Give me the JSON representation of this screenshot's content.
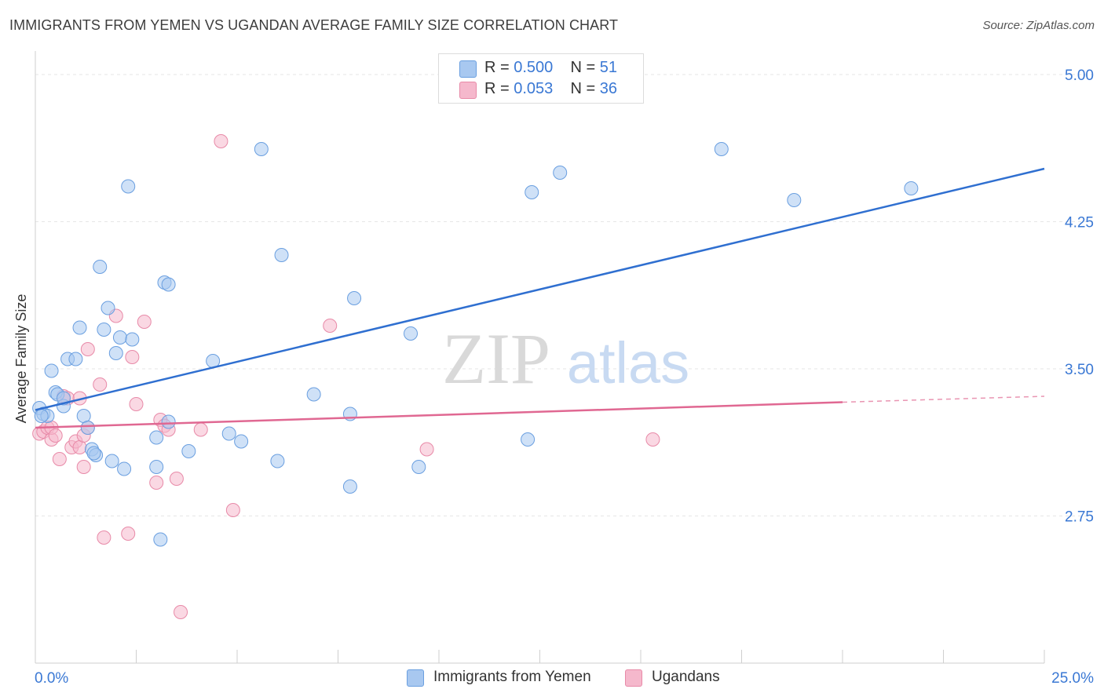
{
  "title": "IMMIGRANTS FROM YEMEN VS UGANDAN AVERAGE FAMILY SIZE CORRELATION CHART",
  "source": "Source: ZipAtlas.com",
  "watermark": {
    "zip": "ZIP",
    "atlas": "atlas"
  },
  "legend": {
    "rows": [
      {
        "r_label": "R = ",
        "r_value": "0.500",
        "n_label": "N = ",
        "n_value": "51"
      },
      {
        "r_label": "R = ",
        "r_value": "0.053",
        "n_label": "N = ",
        "n_value": "36"
      }
    ]
  },
  "bottom_legend": {
    "series1": "Immigrants from Yemen",
    "series2": "Ugandans"
  },
  "colors": {
    "series1_fill": "#a8c8f0",
    "series1_stroke": "#6a9fe0",
    "series1_line": "#2f6fd0",
    "series2_fill": "#f5b8cc",
    "series2_stroke": "#e88aa8",
    "series2_line": "#e06892",
    "axis_value": "#3a78d4",
    "grid": "#e6e6e6"
  },
  "chart_data": {
    "type": "scatter",
    "title": "IMMIGRANTS FROM YEMEN VS UGANDAN AVERAGE FAMILY SIZE CORRELATION CHART",
    "xlabel": "",
    "ylabel": "Average Family Size",
    "xlim": [
      0,
      25
    ],
    "ylim": [
      2.0,
      5.1
    ],
    "x_tick_labels": [
      "0.0%",
      "25.0%"
    ],
    "y_ticks": [
      2.75,
      3.5,
      4.25,
      5.0
    ],
    "y_tick_labels": [
      "2.75",
      "3.50",
      "4.25",
      "5.00"
    ],
    "grid": true,
    "series": [
      {
        "name": "Immigrants from Yemen",
        "r": 0.5,
        "n": 51,
        "trend": {
          "x": [
            0,
            25
          ],
          "y": [
            3.29,
            4.52
          ]
        },
        "points": [
          [
            0.1,
            3.3
          ],
          [
            0.2,
            3.27
          ],
          [
            0.3,
            3.26
          ],
          [
            0.4,
            3.49
          ],
          [
            0.5,
            3.38
          ],
          [
            0.55,
            3.37
          ],
          [
            0.7,
            3.31
          ],
          [
            0.7,
            3.35
          ],
          [
            0.8,
            3.55
          ],
          [
            1.0,
            3.55
          ],
          [
            1.1,
            3.71
          ],
          [
            1.2,
            3.26
          ],
          [
            1.3,
            3.2
          ],
          [
            1.4,
            3.09
          ],
          [
            1.5,
            3.06
          ],
          [
            1.6,
            4.02
          ],
          [
            1.7,
            3.7
          ],
          [
            1.8,
            3.81
          ],
          [
            1.9,
            3.03
          ],
          [
            2.0,
            3.58
          ],
          [
            2.1,
            3.66
          ],
          [
            2.2,
            2.99
          ],
          [
            2.3,
            4.43
          ],
          [
            3.0,
            3.15
          ],
          [
            3.0,
            3.0
          ],
          [
            3.1,
            2.63
          ],
          [
            3.2,
            3.94
          ],
          [
            3.3,
            3.93
          ],
          [
            3.3,
            3.23
          ],
          [
            3.8,
            3.08
          ],
          [
            4.4,
            3.54
          ],
          [
            4.8,
            3.17
          ],
          [
            5.1,
            3.13
          ],
          [
            5.6,
            4.62
          ],
          [
            6.0,
            3.03
          ],
          [
            6.1,
            4.08
          ],
          [
            6.9,
            3.37
          ],
          [
            7.8,
            3.27
          ],
          [
            7.8,
            2.9
          ],
          [
            7.9,
            3.86
          ],
          [
            9.3,
            3.68
          ],
          [
            9.5,
            3.0
          ],
          [
            12.2,
            3.14
          ],
          [
            12.3,
            4.4
          ],
          [
            13.0,
            4.5
          ],
          [
            17.0,
            4.62
          ],
          [
            18.8,
            4.36
          ],
          [
            21.7,
            4.42
          ],
          [
            1.45,
            3.07
          ],
          [
            0.15,
            3.26
          ],
          [
            2.4,
            3.65
          ]
        ]
      },
      {
        "name": "Ugandans",
        "r": 0.053,
        "n": 36,
        "trend": {
          "x": [
            0,
            20
          ],
          "y": [
            3.2,
            3.33
          ]
        },
        "trend_dashed": {
          "x": [
            20,
            25
          ],
          "y": [
            3.33,
            3.36
          ]
        },
        "points": [
          [
            0.1,
            3.17
          ],
          [
            0.2,
            3.18
          ],
          [
            0.3,
            3.2
          ],
          [
            0.4,
            3.14
          ],
          [
            0.4,
            3.2
          ],
          [
            0.5,
            3.16
          ],
          [
            0.6,
            3.04
          ],
          [
            0.7,
            3.36
          ],
          [
            0.8,
            3.35
          ],
          [
            0.9,
            3.1
          ],
          [
            1.0,
            3.13
          ],
          [
            1.1,
            3.1
          ],
          [
            1.1,
            3.35
          ],
          [
            1.2,
            3.16
          ],
          [
            1.2,
            3.0
          ],
          [
            1.3,
            3.2
          ],
          [
            1.3,
            3.6
          ],
          [
            1.6,
            3.42
          ],
          [
            1.7,
            2.64
          ],
          [
            2.0,
            3.77
          ],
          [
            2.3,
            2.66
          ],
          [
            2.4,
            3.56
          ],
          [
            2.5,
            3.32
          ],
          [
            2.7,
            3.74
          ],
          [
            3.0,
            2.92
          ],
          [
            3.1,
            3.24
          ],
          [
            3.2,
            3.21
          ],
          [
            3.3,
            3.19
          ],
          [
            3.5,
            2.94
          ],
          [
            3.6,
            2.26
          ],
          [
            4.1,
            3.19
          ],
          [
            4.6,
            4.66
          ],
          [
            4.9,
            2.78
          ],
          [
            7.3,
            3.72
          ],
          [
            9.7,
            3.09
          ],
          [
            15.3,
            3.14
          ]
        ]
      }
    ]
  }
}
